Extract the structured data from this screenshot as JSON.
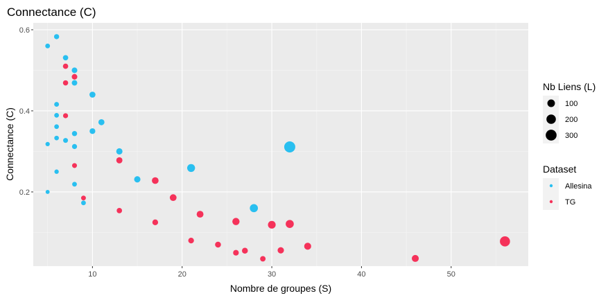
{
  "chart_data": {
    "type": "scatter",
    "title": "Connectance (C)",
    "xlabel": "Nombre de groupes (S)",
    "ylabel": "Connectance (C)",
    "xlim": [
      3.4,
      58.6
    ],
    "ylim": [
      0.017,
      0.617
    ],
    "x_ticks": [
      10,
      20,
      30,
      40,
      50
    ],
    "y_ticks": [
      0.2,
      0.4,
      0.6
    ],
    "y_tick_labels": [
      "0.2",
      "0.4",
      "0.6"
    ],
    "grid": true,
    "size_legend": {
      "title": "Nb Liens (L)",
      "values": [
        100,
        200,
        300
      ],
      "color": "#000000"
    },
    "color_legend": {
      "title": "Dataset",
      "entries": [
        {
          "label": "Allesina",
          "color": "#29bff0"
        },
        {
          "label": "TG",
          "color": "#f5325a"
        }
      ]
    },
    "series": [
      {
        "name": "Allesina",
        "color": "#29bff0",
        "points": [
          {
            "x": 5,
            "y": 0.56,
            "L": 14
          },
          {
            "x": 5,
            "y": 0.318,
            "L": 8
          },
          {
            "x": 5,
            "y": 0.2,
            "L": 5
          },
          {
            "x": 6,
            "y": 0.583,
            "L": 21
          },
          {
            "x": 6,
            "y": 0.416,
            "L": 15
          },
          {
            "x": 6,
            "y": 0.389,
            "L": 14
          },
          {
            "x": 6,
            "y": 0.361,
            "L": 13
          },
          {
            "x": 6,
            "y": 0.333,
            "L": 12
          },
          {
            "x": 6,
            "y": 0.25,
            "L": 9
          },
          {
            "x": 7,
            "y": 0.531,
            "L": 26
          },
          {
            "x": 7,
            "y": 0.327,
            "L": 16
          },
          {
            "x": 8,
            "y": 0.5,
            "L": 32
          },
          {
            "x": 8,
            "y": 0.469,
            "L": 30
          },
          {
            "x": 8,
            "y": 0.344,
            "L": 22
          },
          {
            "x": 8,
            "y": 0.312,
            "L": 20
          },
          {
            "x": 8,
            "y": 0.219,
            "L": 14
          },
          {
            "x": 9,
            "y": 0.173,
            "L": 14
          },
          {
            "x": 10,
            "y": 0.44,
            "L": 44
          },
          {
            "x": 10,
            "y": 0.35,
            "L": 35
          },
          {
            "x": 11,
            "y": 0.372,
            "L": 45
          },
          {
            "x": 13,
            "y": 0.3,
            "L": 51
          },
          {
            "x": 15,
            "y": 0.231,
            "L": 52
          },
          {
            "x": 21,
            "y": 0.259,
            "L": 114
          },
          {
            "x": 28,
            "y": 0.16,
            "L": 125
          },
          {
            "x": 32,
            "y": 0.311,
            "L": 318
          }
        ]
      },
      {
        "name": "TG",
        "color": "#f5325a",
        "points": [
          {
            "x": 7,
            "y": 0.51,
            "L": 25
          },
          {
            "x": 7,
            "y": 0.469,
            "L": 23
          },
          {
            "x": 7,
            "y": 0.388,
            "L": 19
          },
          {
            "x": 8,
            "y": 0.484,
            "L": 31
          },
          {
            "x": 8,
            "y": 0.265,
            "L": 17
          },
          {
            "x": 9,
            "y": 0.185,
            "L": 15
          },
          {
            "x": 13,
            "y": 0.278,
            "L": 47
          },
          {
            "x": 13,
            "y": 0.154,
            "L": 26
          },
          {
            "x": 17,
            "y": 0.228,
            "L": 66
          },
          {
            "x": 17,
            "y": 0.125,
            "L": 36
          },
          {
            "x": 19,
            "y": 0.186,
            "L": 67
          },
          {
            "x": 21,
            "y": 0.08,
            "L": 35
          },
          {
            "x": 22,
            "y": 0.145,
            "L": 70
          },
          {
            "x": 24,
            "y": 0.07,
            "L": 40
          },
          {
            "x": 26,
            "y": 0.127,
            "L": 86
          },
          {
            "x": 26,
            "y": 0.05,
            "L": 34
          },
          {
            "x": 27,
            "y": 0.055,
            "L": 40
          },
          {
            "x": 29,
            "y": 0.035,
            "L": 29
          },
          {
            "x": 30,
            "y": 0.119,
            "L": 107
          },
          {
            "x": 31,
            "y": 0.056,
            "L": 54
          },
          {
            "x": 32,
            "y": 0.121,
            "L": 124
          },
          {
            "x": 34,
            "y": 0.066,
            "L": 76
          },
          {
            "x": 46,
            "y": 0.036,
            "L": 76
          },
          {
            "x": 56,
            "y": 0.078,
            "L": 245
          }
        ]
      }
    ]
  }
}
